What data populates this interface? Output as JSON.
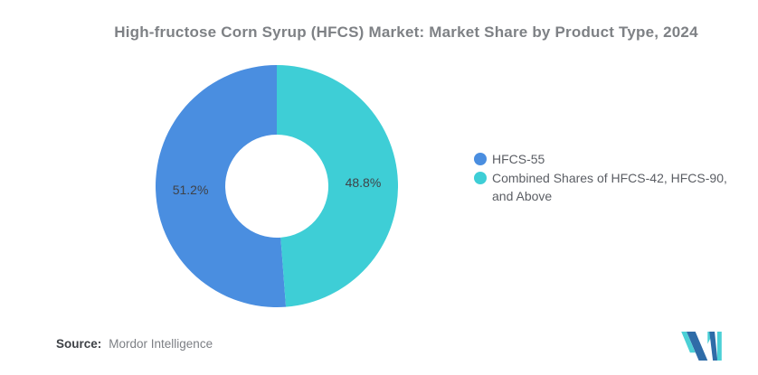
{
  "title": "High-fructose Corn Syrup (HFCS) Market: Market Share by Product Type, 2024",
  "chart_data": {
    "type": "pie",
    "subtype": "donut",
    "title": "High-fructose Corn Syrup (HFCS) Market: Market Share by Product Type, 2024",
    "unit": "%",
    "segments": [
      {
        "label": "HFCS-55",
        "value": 51.2,
        "display": "51.2%",
        "color": "#4A8EE0"
      },
      {
        "label": "Combined Shares of HFCS-42, HFCS-90, and Above",
        "value": 48.8,
        "display": "48.8%",
        "color": "#3ECED6"
      }
    ],
    "layout": {
      "start_angle_deg": 0,
      "direction": "counterclockwise",
      "inner_radius_ratio": 0.425,
      "labels_position": "inside",
      "legend_position": "right",
      "grid": "off",
      "background": "#FFFFFF"
    }
  },
  "source": {
    "label": "Source:",
    "value": "Mordor Intelligence"
  },
  "branding": {
    "logo": "mordor-intelligence-logo",
    "navy": "#2F6CA8",
    "teal": "#4BD0D6"
  }
}
